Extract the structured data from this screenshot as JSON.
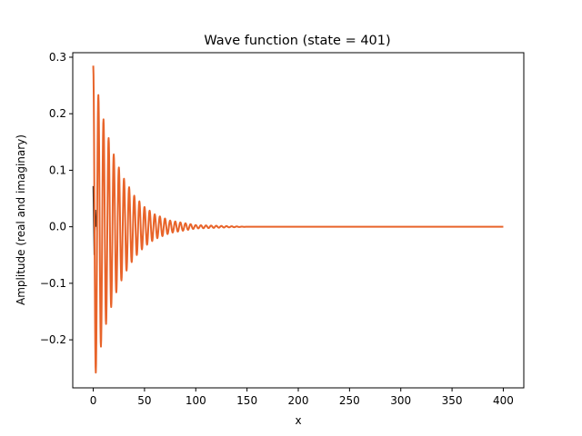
{
  "chart_data": {
    "type": "line",
    "title": "Wave function (state = 401)",
    "xlabel": "x",
    "ylabel": "Amplitude (real and imaginary)",
    "xlim": [
      -20,
      420
    ],
    "ylim": [
      -0.285,
      0.308
    ],
    "xticks": [
      "0",
      "50",
      "100",
      "150",
      "200",
      "250",
      "300",
      "350",
      "400"
    ],
    "xtick_values": [
      0,
      50,
      100,
      150,
      200,
      250,
      300,
      350,
      400
    ],
    "yticks": [
      "−0.2",
      "−0.1",
      "0.0",
      "0.1",
      "0.2",
      "0.3"
    ],
    "ytick_values": [
      -0.2,
      -0.1,
      0.0,
      0.1,
      0.2,
      0.3
    ],
    "grid": false,
    "legend": "none",
    "series": [
      {
        "role": "real part",
        "color": "#1a1a1a",
        "description_points": [
          [
            0,
            0.072
          ],
          [
            1,
            -0.05
          ],
          [
            2,
            0.03
          ],
          [
            3,
            0.0
          ]
        ]
      },
      {
        "role": "imaginary part",
        "color": "#e8642a",
        "envelope": "damped oscillation",
        "peak_points": [
          [
            0,
            0.285
          ],
          [
            2.5,
            -0.258
          ],
          [
            5,
            0.233
          ],
          [
            7.5,
            -0.212
          ],
          [
            10,
            0.19
          ],
          [
            12.5,
            -0.172
          ],
          [
            15,
            0.157
          ],
          [
            17.5,
            -0.142
          ],
          [
            20,
            0.128
          ],
          [
            22.5,
            -0.116
          ],
          [
            25,
            0.105
          ],
          [
            30,
            0.085
          ],
          [
            40,
            0.055
          ],
          [
            50,
            0.035
          ],
          [
            60,
            0.022
          ],
          [
            75,
            0.011
          ],
          [
            100,
            0.003
          ],
          [
            150,
            0.0
          ],
          [
            400,
            0.0
          ]
        ]
      }
    ]
  }
}
